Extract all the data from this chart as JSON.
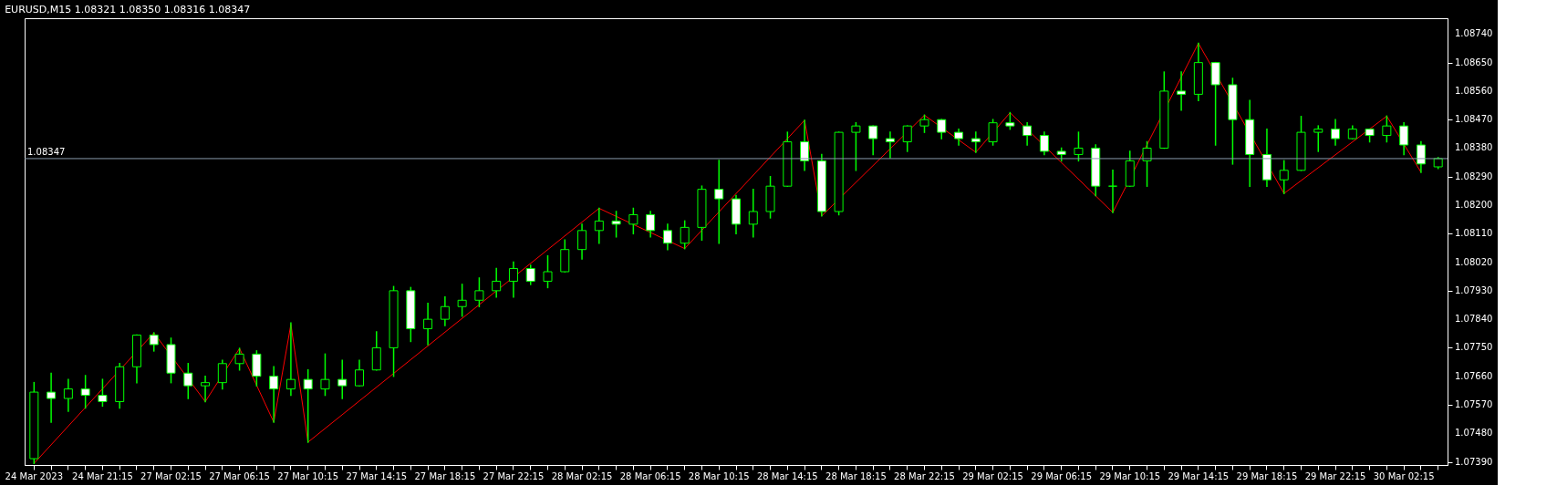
{
  "chart_data": {
    "type": "candlestick",
    "title": "EURUSD,M15  1.08321 1.08350 1.08316 1.08347",
    "categories": [
      "24 Mar 2023",
      null,
      null,
      null,
      "24 Mar 21:15",
      null,
      null,
      null,
      "27 Mar 02:15",
      null,
      null,
      null,
      "27 Mar 06:15",
      null,
      null,
      null,
      "27 Mar 10:15",
      null,
      null,
      null,
      "27 Mar 14:15",
      null,
      null,
      null,
      "27 Mar 18:15",
      null,
      null,
      null,
      "27 Mar 22:15",
      null,
      null,
      null,
      "28 Mar 02:15",
      null,
      null,
      null,
      "28 Mar 06:15",
      null,
      null,
      null,
      "28 Mar 10:15",
      null,
      null,
      null,
      "28 Mar 14:15",
      null,
      null,
      null,
      "28 Mar 18:15",
      null,
      null,
      null,
      "28 Mar 22:15",
      null,
      null,
      null,
      "29 Mar 02:15",
      null,
      null,
      null,
      "29 Mar 06:15",
      null,
      null,
      null,
      "29 Mar 10:15",
      null,
      null,
      null,
      "29 Mar 14:15",
      null,
      null,
      null,
      "29 Mar 18:15",
      null,
      null,
      null,
      "29 Mar 22:15",
      null,
      null,
      null,
      "30 Mar 02:15",
      null,
      null
    ],
    "series": [
      {
        "type": "candlestick",
        "color": "#00ff00",
        "ohlc": [
          [
            1.074,
            1.0764,
            1.07385,
            1.0761
          ],
          [
            1.0761,
            1.07669,
            1.07515,
            1.0759
          ],
          [
            1.0759,
            1.0765,
            1.0755,
            1.0762
          ],
          [
            1.0762,
            1.07662,
            1.0756,
            1.076
          ],
          [
            1.076,
            1.0765,
            1.07566,
            1.0758
          ],
          [
            1.0758,
            1.077,
            1.0756,
            1.0769
          ],
          [
            1.0769,
            1.0779,
            1.0764,
            1.0779
          ],
          [
            1.0779,
            1.07797,
            1.0774,
            1.0776
          ],
          [
            1.0776,
            1.0778,
            1.0764,
            1.0767
          ],
          [
            1.0767,
            1.077,
            1.0759,
            1.0763
          ],
          [
            1.0763,
            1.0766,
            1.0758,
            1.0764
          ],
          [
            1.0764,
            1.0771,
            1.0762,
            1.077
          ],
          [
            1.077,
            1.07748,
            1.0768,
            1.0773
          ],
          [
            1.0773,
            1.0774,
            1.0763,
            1.0766
          ],
          [
            1.0766,
            1.0769,
            1.07515,
            1.0762
          ],
          [
            1.0762,
            1.07828,
            1.076,
            1.0765
          ],
          [
            1.0765,
            1.0768,
            1.07452,
            1.0762
          ],
          [
            1.0762,
            1.0773,
            1.076,
            1.0765
          ],
          [
            1.0765,
            1.0771,
            1.0759,
            1.0763
          ],
          [
            1.0763,
            1.0771,
            1.0763,
            1.0768
          ],
          [
            1.0768,
            1.078,
            1.0768,
            1.0775
          ],
          [
            1.0775,
            1.07943,
            1.0766,
            1.0793
          ],
          [
            1.0793,
            1.0794,
            1.0777,
            1.0781
          ],
          [
            1.0781,
            1.0789,
            1.0776,
            1.0784
          ],
          [
            1.0784,
            1.0791,
            1.0782,
            1.0788
          ],
          [
            1.0788,
            1.0795,
            1.0785,
            1.079
          ],
          [
            1.079,
            1.0797,
            1.0788,
            1.0793
          ],
          [
            1.0793,
            1.08,
            1.0791,
            1.0796
          ],
          [
            1.0796,
            1.0802,
            1.0791,
            1.08
          ],
          [
            1.08,
            1.0801,
            1.0795,
            1.0796
          ],
          [
            1.0796,
            1.0804,
            1.0794,
            1.0799
          ],
          [
            1.0799,
            1.0809,
            1.0799,
            1.0806
          ],
          [
            1.0806,
            1.0814,
            1.0803,
            1.0812
          ],
          [
            1.0812,
            1.0819,
            1.0808,
            1.0815
          ],
          [
            1.0815,
            1.0818,
            1.081,
            1.0814
          ],
          [
            1.0814,
            1.0819,
            1.0811,
            1.0817
          ],
          [
            1.0817,
            1.0818,
            1.081,
            1.0812
          ],
          [
            1.0812,
            1.0814,
            1.0806,
            1.0808
          ],
          [
            1.0808,
            1.0815,
            1.08063,
            1.0813
          ],
          [
            1.0813,
            1.0826,
            1.0809,
            1.0825
          ],
          [
            1.0825,
            1.08341,
            1.0808,
            1.0822
          ],
          [
            1.0822,
            1.0823,
            1.0811,
            1.0814
          ],
          [
            1.0814,
            1.0825,
            1.081,
            1.0818
          ],
          [
            1.0818,
            1.0829,
            1.0816,
            1.0826
          ],
          [
            1.0826,
            1.0843,
            1.0826,
            1.084
          ],
          [
            1.084,
            1.08468,
            1.0831,
            1.0834
          ],
          [
            1.0834,
            1.0836,
            1.08166,
            1.0818
          ],
          [
            1.0818,
            1.0843,
            1.0817,
            1.0843
          ],
          [
            1.0843,
            1.0846,
            1.0831,
            1.0845
          ],
          [
            1.0845,
            1.0845,
            1.0836,
            1.0841
          ],
          [
            1.0841,
            1.0843,
            1.0835,
            1.084
          ],
          [
            1.084,
            1.0845,
            1.0837,
            1.0845
          ],
          [
            1.0845,
            1.08484,
            1.0843,
            1.0847
          ],
          [
            1.0847,
            1.0847,
            1.0841,
            1.0843
          ],
          [
            1.0843,
            1.0844,
            1.0839,
            1.0841
          ],
          [
            1.0841,
            1.0843,
            1.08367,
            1.084
          ],
          [
            1.084,
            1.0847,
            1.0839,
            1.0846
          ],
          [
            1.0846,
            1.08492,
            1.0844,
            1.0845
          ],
          [
            1.0845,
            1.0846,
            1.0839,
            1.0842
          ],
          [
            1.0842,
            1.0843,
            1.0836,
            1.0837
          ],
          [
            1.0837,
            1.0838,
            1.0834,
            1.0836
          ],
          [
            1.0836,
            1.0843,
            1.0834,
            1.0838
          ],
          [
            1.0838,
            1.0839,
            1.0823,
            1.0826
          ],
          [
            1.0826,
            1.0831,
            1.08177,
            1.0826
          ],
          [
            1.0826,
            1.0837,
            1.0826,
            1.0834
          ],
          [
            1.0834,
            1.084,
            1.0826,
            1.0838
          ],
          [
            1.0838,
            1.0862,
            1.0838,
            1.0856
          ],
          [
            1.0856,
            1.0862,
            1.085,
            1.0855
          ],
          [
            1.0855,
            1.08711,
            1.0853,
            1.0865
          ],
          [
            1.0865,
            1.0865,
            1.0839,
            1.0858
          ],
          [
            1.0858,
            1.086,
            1.0833,
            1.0847
          ],
          [
            1.0847,
            1.0853,
            1.0826,
            1.0836
          ],
          [
            1.0836,
            1.0844,
            1.0826,
            1.0828
          ],
          [
            1.0828,
            1.0834,
            1.08237,
            1.0831
          ],
          [
            1.0831,
            1.0848,
            1.0831,
            1.0843
          ],
          [
            1.0843,
            1.0845,
            1.0837,
            1.0844
          ],
          [
            1.0844,
            1.0847,
            1.0839,
            1.0841
          ],
          [
            1.0841,
            1.0845,
            1.0841,
            1.0844
          ],
          [
            1.0844,
            1.0844,
            1.084,
            1.0842
          ],
          [
            1.0842,
            1.08481,
            1.084,
            1.0845
          ],
          [
            1.0845,
            1.0846,
            1.0836,
            1.0839
          ],
          [
            1.0839,
            1.084,
            1.08304,
            1.0833
          ],
          [
            1.08321,
            1.0835,
            1.08316,
            1.08347
          ]
        ]
      },
      {
        "type": "line",
        "color": "#ff0000",
        "values": [
          1.07385,
          null,
          null,
          null,
          null,
          null,
          null,
          1.07797,
          null,
          null,
          1.0758,
          null,
          1.07748,
          null,
          1.07515,
          1.07824,
          1.07452,
          null,
          null,
          null,
          null,
          null,
          null,
          null,
          null,
          null,
          null,
          null,
          null,
          null,
          null,
          null,
          null,
          1.0819,
          null,
          null,
          null,
          null,
          1.08063,
          null,
          null,
          null,
          null,
          null,
          null,
          1.08468,
          1.08166,
          null,
          null,
          null,
          null,
          null,
          1.08484,
          null,
          null,
          1.08367,
          null,
          1.08492,
          null,
          null,
          null,
          null,
          null,
          1.08177,
          null,
          null,
          null,
          null,
          1.08711,
          null,
          null,
          null,
          null,
          1.08237,
          null,
          null,
          null,
          null,
          null,
          1.08481,
          null,
          1.08304,
          null
        ]
      }
    ],
    "ylim": [
      1.0738,
      1.0879
    ],
    "yticks": [
      {
        "value": 1.0739,
        "label": "1.07390"
      },
      {
        "value": 1.0748,
        "label": "1.07480"
      },
      {
        "value": 1.0757,
        "label": "1.07570"
      },
      {
        "value": 1.0766,
        "label": "1.07660"
      },
      {
        "value": 1.0775,
        "label": "1.07750"
      },
      {
        "value": 1.0784,
        "label": "1.07840"
      },
      {
        "value": 1.0793,
        "label": "1.07930"
      },
      {
        "value": 1.0802,
        "label": "1.08020"
      },
      {
        "value": 1.0811,
        "label": "1.08110"
      },
      {
        "value": 1.082,
        "label": "1.08200"
      },
      {
        "value": 1.0829,
        "label": "1.08290"
      },
      {
        "value": 1.0838,
        "label": "1.08380"
      },
      {
        "value": 1.0847,
        "label": "1.08470"
      },
      {
        "value": 1.0856,
        "label": "1.08560"
      },
      {
        "value": 1.0865,
        "label": "1.08650"
      },
      {
        "value": 1.0874,
        "label": "1.08740"
      }
    ],
    "ref_lines": [
      {
        "axis": "y",
        "value": 1.08347,
        "label": "1.08347",
        "color": "#8899aa"
      }
    ],
    "grid": false
  }
}
